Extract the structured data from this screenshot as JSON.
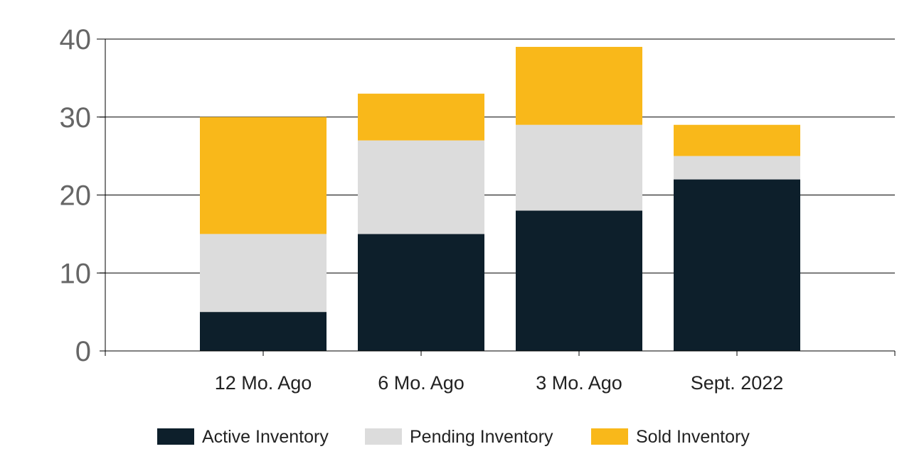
{
  "chart_data": {
    "type": "bar",
    "stacked": true,
    "categories": [
      "12 Mo. Ago",
      "6 Mo. Ago",
      "3 Mo. Ago",
      "Sept. 2022"
    ],
    "series": [
      {
        "name": "Active Inventory",
        "color": "#0d1f2b",
        "values": [
          5,
          15,
          18,
          22
        ]
      },
      {
        "name": "Pending Inventory",
        "color": "#dcdcdc",
        "values": [
          10,
          12,
          11,
          3
        ]
      },
      {
        "name": "Sold Inventory",
        "color": "#f9b81a",
        "values": [
          15,
          6,
          10,
          4
        ]
      }
    ],
    "yticks": [
      "0",
      "10",
      "20",
      "30",
      "40"
    ],
    "ylim": [
      0,
      40
    ],
    "grid": true,
    "legend_position": "bottom"
  }
}
